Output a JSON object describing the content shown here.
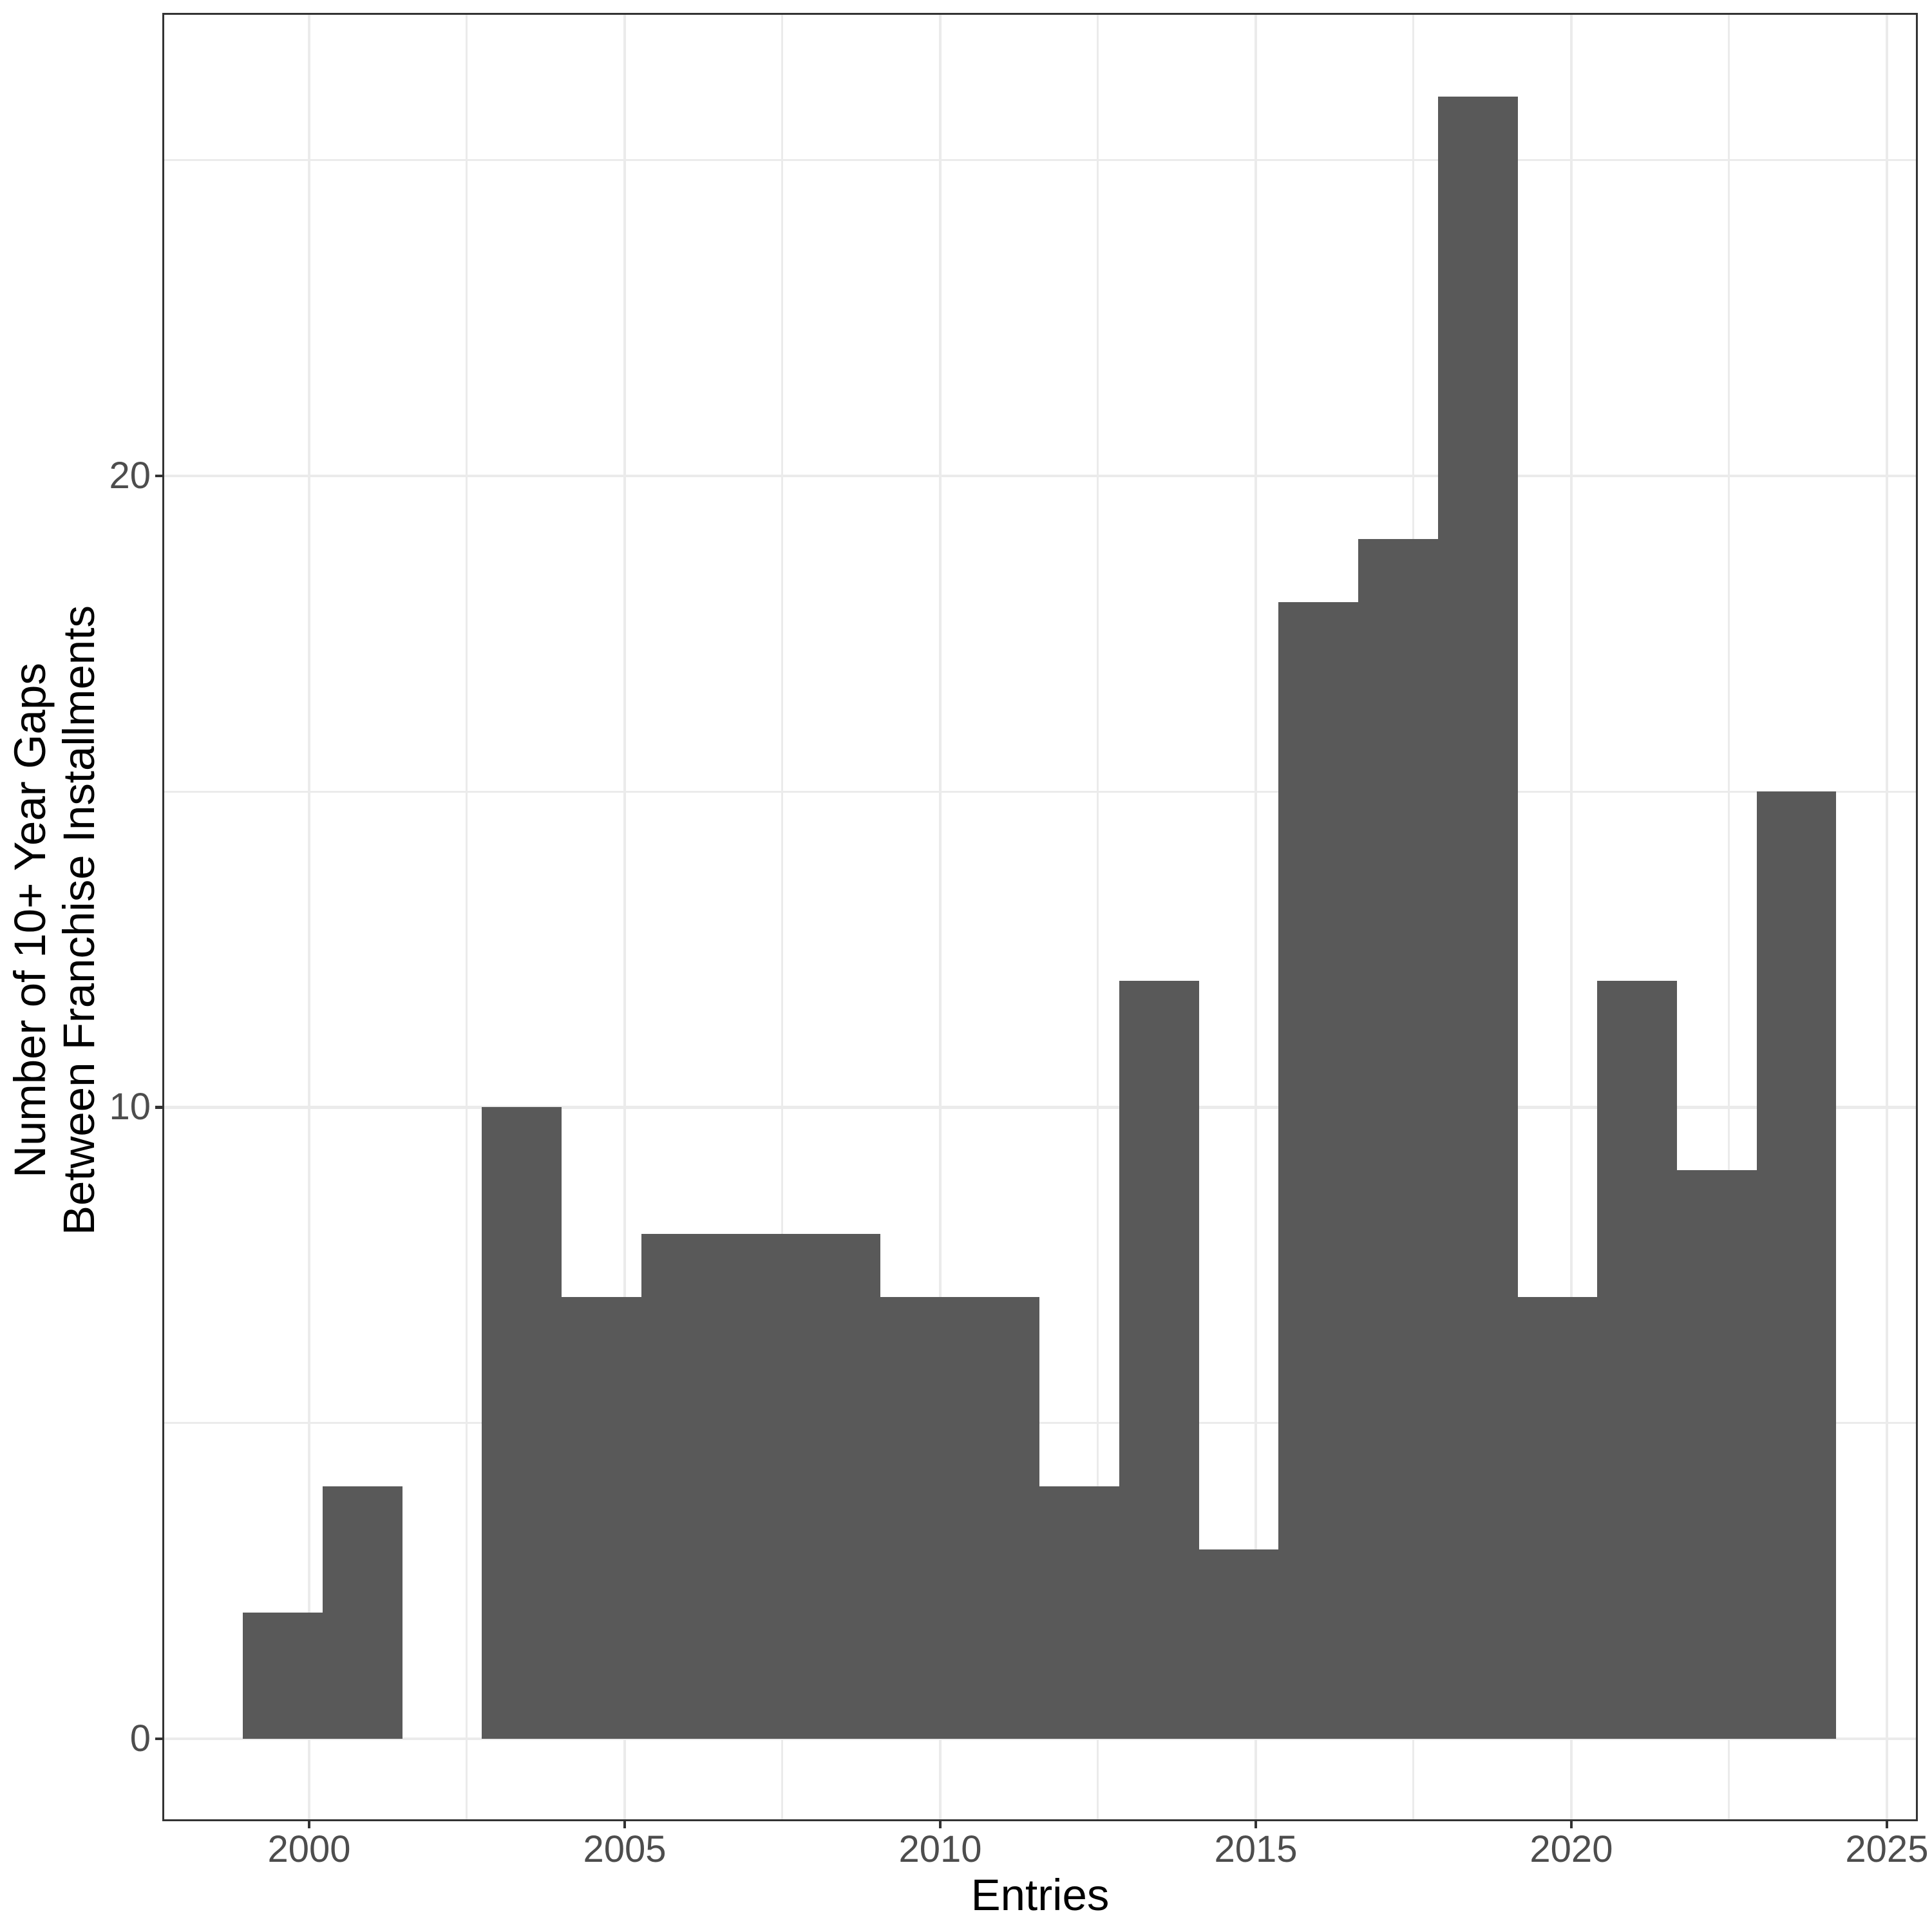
{
  "chart_data": {
    "type": "bar",
    "subtype": "histogram",
    "title": "",
    "xlabel": "Entries",
    "ylabel_line1": "Number of 10+ Year Gaps",
    "ylabel_line2": "Between Franchise Installments",
    "bin_start": 1998.953,
    "bin_width": 1.26224,
    "bin_edges": [
      1998.953,
      2000.215,
      2001.477,
      2002.74,
      2004.002,
      2005.264,
      2006.526,
      2007.789,
      2009.051,
      2010.313,
      2011.575,
      2012.838,
      2014.1,
      2015.362,
      2016.624,
      2017.887,
      2019.149,
      2020.411,
      2021.673,
      2022.936,
      2024.198
    ],
    "counts": [
      2,
      4,
      0,
      10,
      7,
      8,
      8,
      8,
      7,
      7,
      4,
      12,
      3,
      18,
      19,
      26,
      7,
      12,
      9,
      15
    ],
    "x_ticks": [
      {
        "value": 2000,
        "label": "2000"
      },
      {
        "value": 2005,
        "label": "2005"
      },
      {
        "value": 2010,
        "label": "2010"
      },
      {
        "value": 2015,
        "label": "2015"
      },
      {
        "value": 2020,
        "label": "2020"
      },
      {
        "value": 2025,
        "label": "2025"
      }
    ],
    "y_ticks": [
      {
        "value": 0,
        "label": "0"
      },
      {
        "value": 10,
        "label": "10"
      },
      {
        "value": 20,
        "label": "20"
      }
    ],
    "x_minor_ticks": [
      2002.5,
      2007.5,
      2012.5,
      2017.5,
      2022.5
    ],
    "y_minor_ticks": [
      5,
      15,
      25
    ],
    "xlim": [
      1997.694,
      2025.47
    ],
    "ylim": [
      -1.285,
      27.31
    ],
    "grid": true,
    "legend_position": "none",
    "colors": {
      "bar_fill": "#595959",
      "grid_major": "#EBEBEB",
      "grid_minor": "#EBEBEB",
      "panel_border": "#333333",
      "tick_mark": "#333333",
      "tick_label": "#4D4D4D",
      "axis_title": "#000000",
      "background": "#FFFFFF"
    }
  }
}
